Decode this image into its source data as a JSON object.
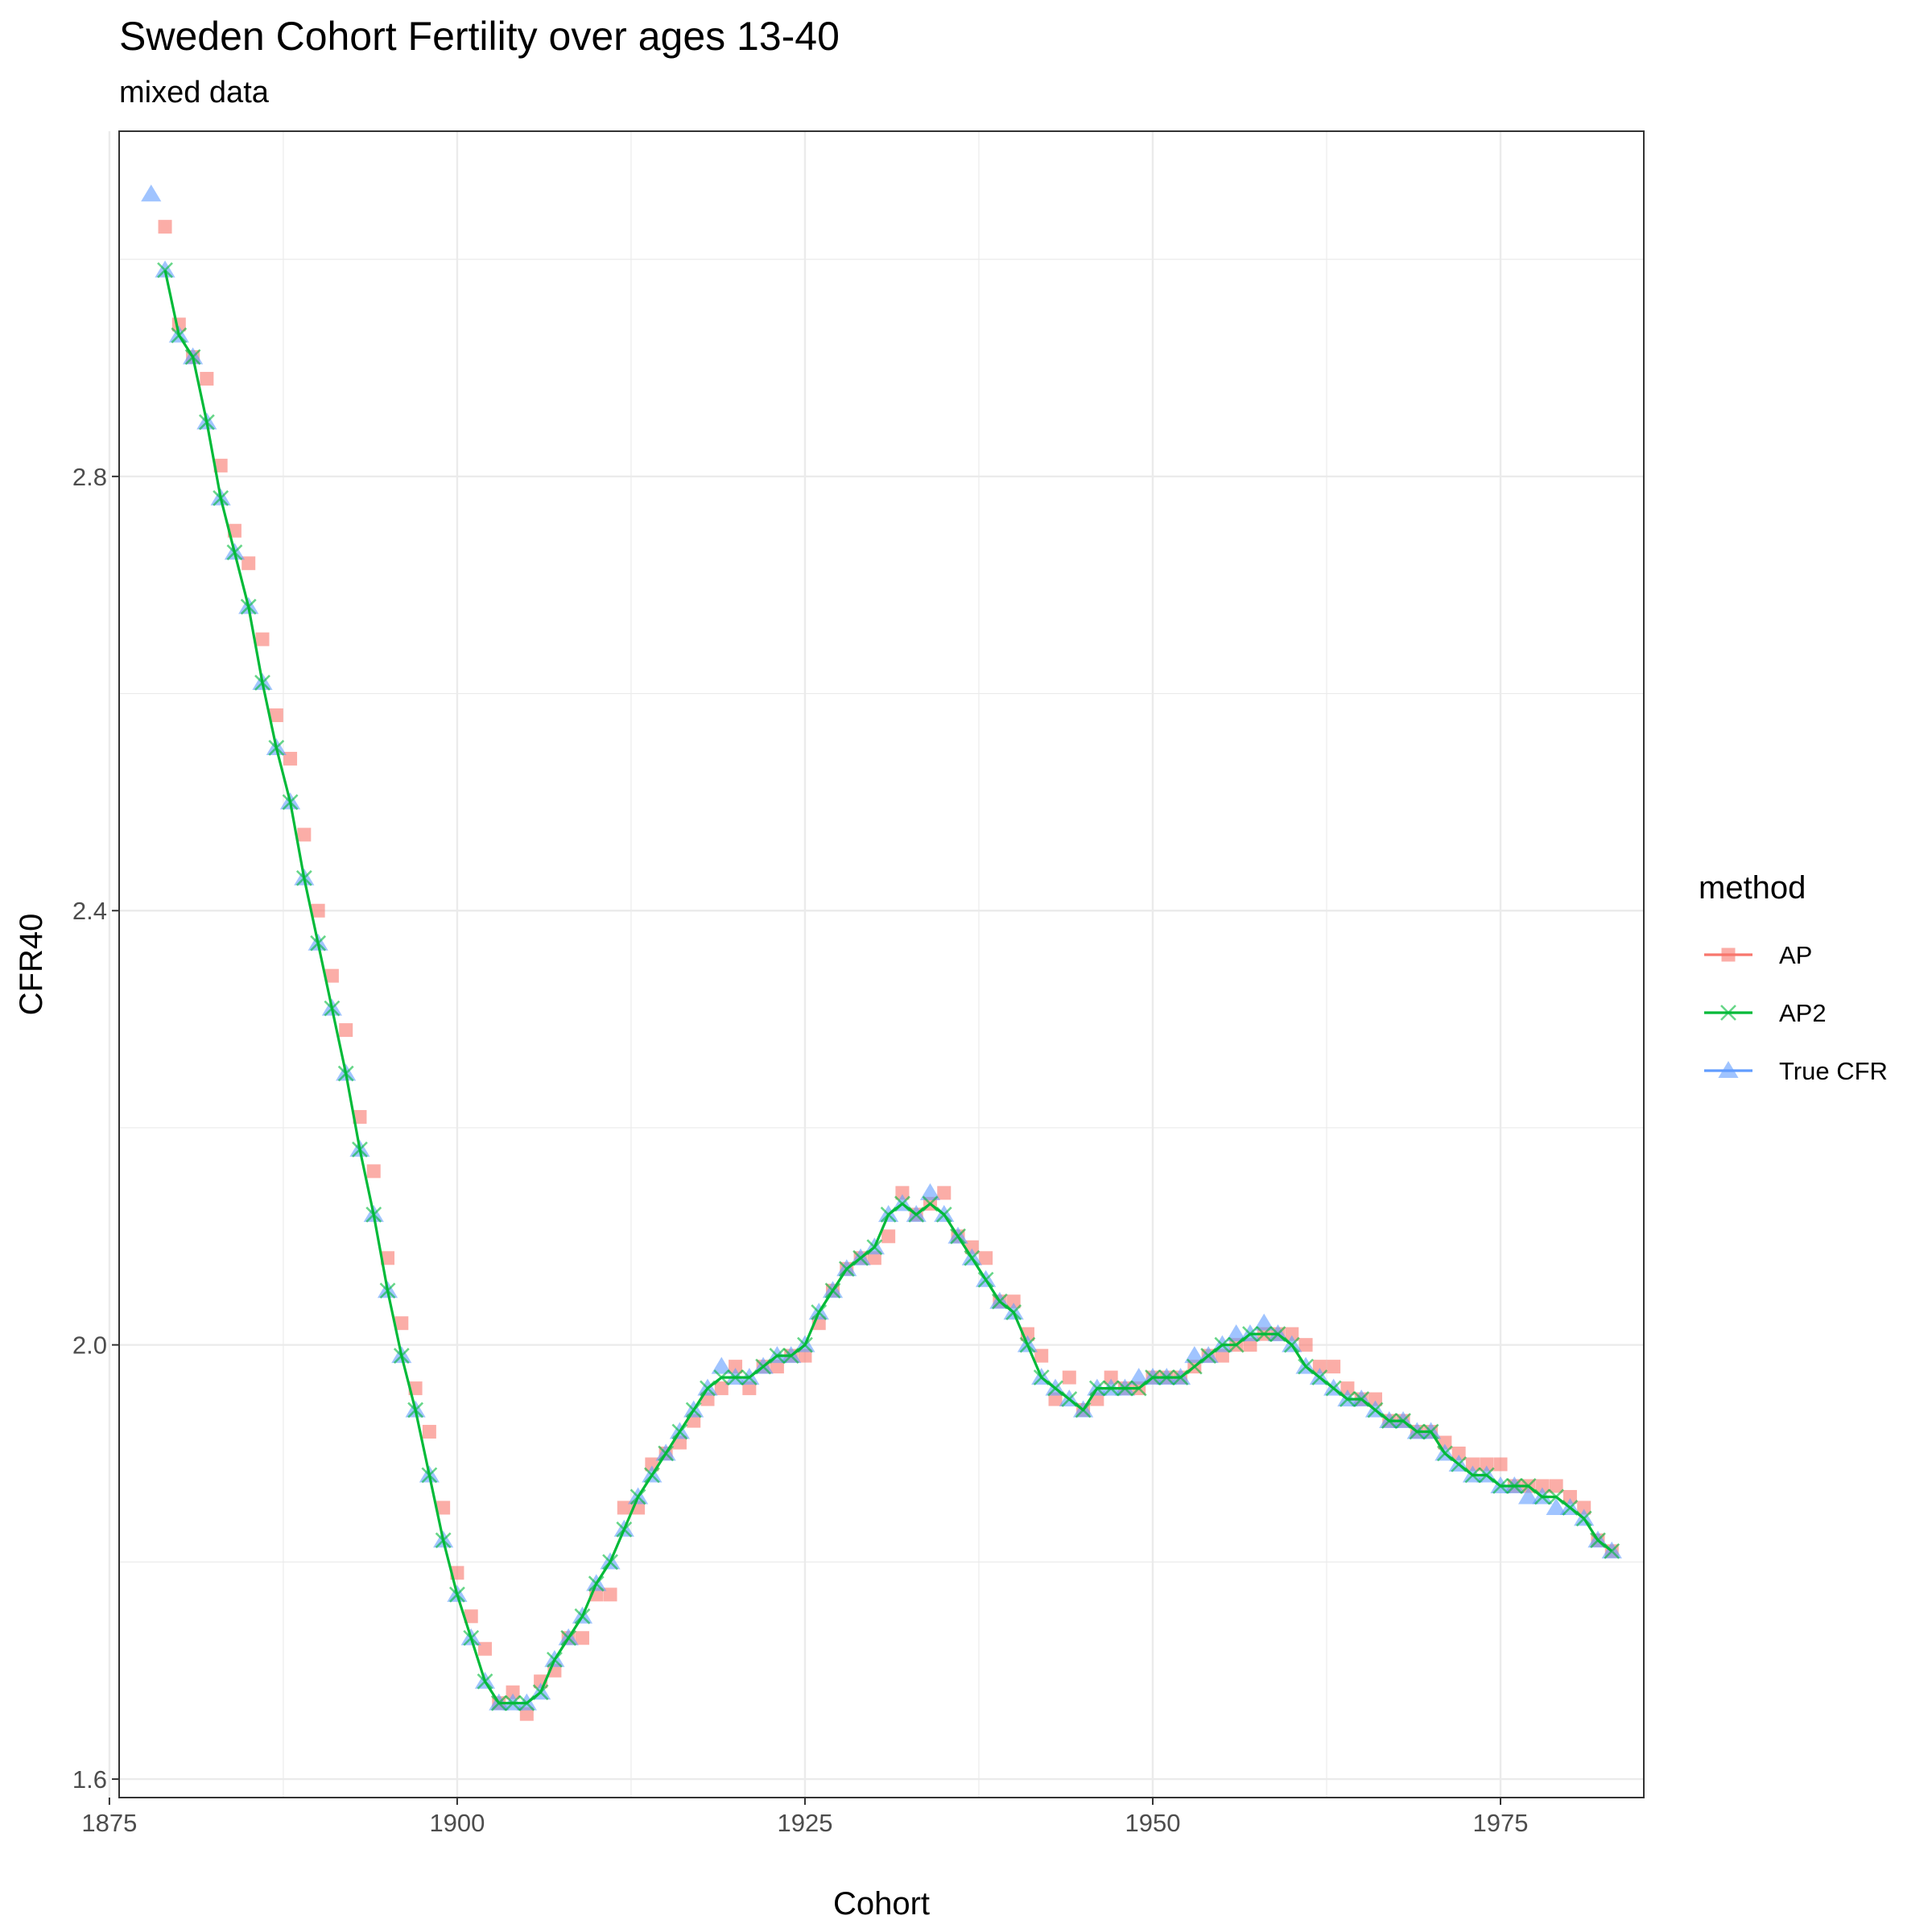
{
  "chart_data": {
    "type": "line",
    "title": "Sweden Cohort Fertility over ages 13-40",
    "subtitle": "mixed data",
    "xlabel": "Cohort",
    "ylabel": "CFR40",
    "xlim": [
      1875.7,
      1985.3
    ],
    "ylim": [
      1.583,
      3.118
    ],
    "x_ticks": [
      1875,
      1900,
      1925,
      1950,
      1975
    ],
    "x_tick_labels": [
      "1875",
      "1900",
      "1925",
      "1950",
      "1975"
    ],
    "y_ticks": [
      1.6,
      2.0,
      2.4,
      2.8
    ],
    "y_tick_labels": [
      "1.6",
      "2.0",
      "2.4",
      "2.8"
    ],
    "y_minor_ticks": [
      1.8,
      2.2,
      2.6,
      3.0
    ],
    "grid": true,
    "legend": {
      "title": "method",
      "position": "right"
    },
    "colors": {
      "AP": "#F8766D",
      "AP2": "#00BA38",
      "True CFR": "#619CFF"
    },
    "series": [
      {
        "name": "AP",
        "marker": "square",
        "x": [
          1879,
          1880,
          1881,
          1882,
          1883,
          1884,
          1885,
          1886,
          1887,
          1888,
          1889,
          1890,
          1891,
          1892,
          1893,
          1894,
          1895,
          1896,
          1897,
          1898,
          1899,
          1900,
          1901,
          1902,
          1903,
          1904,
          1905,
          1906,
          1907,
          1908,
          1909,
          1910,
          1911,
          1912,
          1913,
          1914,
          1915,
          1916,
          1917,
          1918,
          1919,
          1920,
          1921,
          1922,
          1923,
          1924,
          1925,
          1926,
          1927,
          1928,
          1929,
          1930,
          1931,
          1932,
          1933,
          1934,
          1935,
          1936,
          1937,
          1938,
          1939,
          1940,
          1941,
          1942,
          1943,
          1944,
          1945,
          1946,
          1947,
          1948,
          1949,
          1950,
          1951,
          1952,
          1953,
          1954,
          1955,
          1956,
          1957,
          1958,
          1959,
          1960,
          1961,
          1962,
          1963,
          1964,
          1965,
          1966,
          1967,
          1968,
          1969,
          1970,
          1971,
          1972,
          1973,
          1974,
          1975,
          1976,
          1977,
          1978,
          1979,
          1980,
          1981,
          1982,
          1983
        ],
        "y": [
          3.03,
          2.94,
          2.91,
          2.89,
          2.81,
          2.75,
          2.72,
          2.65,
          2.58,
          2.54,
          2.47,
          2.4,
          2.34,
          2.29,
          2.21,
          2.16,
          2.08,
          2.02,
          1.96,
          1.92,
          1.85,
          1.79,
          1.75,
          1.72,
          1.67,
          1.68,
          1.66,
          1.69,
          1.7,
          1.73,
          1.73,
          1.77,
          1.77,
          1.85,
          1.85,
          1.89,
          1.9,
          1.91,
          1.93,
          1.95,
          1.96,
          1.98,
          1.96,
          1.98,
          1.98,
          1.99,
          1.99,
          2.02,
          2.05,
          2.07,
          2.08,
          2.08,
          2.1,
          2.14,
          2.12,
          2.13,
          2.14,
          2.1,
          2.09,
          2.08,
          2.04,
          2.04,
          2.01,
          1.99,
          1.95,
          1.97,
          1.94,
          1.95,
          1.97,
          1.96,
          1.96,
          1.97,
          1.97,
          1.97,
          1.98,
          1.99,
          1.99,
          2.0,
          2.0,
          2.01,
          2.01,
          2.01,
          2.0,
          1.98,
          1.98,
          1.96,
          1.95,
          1.95,
          1.93,
          1.93,
          1.92,
          1.92,
          1.91,
          1.9,
          1.89,
          1.89,
          1.89,
          1.87,
          1.87,
          1.87,
          1.87,
          1.86,
          1.85,
          1.82,
          1.81
        ]
      },
      {
        "name": "AP2",
        "marker": "x",
        "x": [
          1879,
          1880,
          1881,
          1882,
          1883,
          1884,
          1885,
          1886,
          1887,
          1888,
          1889,
          1890,
          1891,
          1892,
          1893,
          1894,
          1895,
          1896,
          1897,
          1898,
          1899,
          1900,
          1901,
          1902,
          1903,
          1904,
          1905,
          1906,
          1907,
          1908,
          1909,
          1910,
          1911,
          1912,
          1913,
          1914,
          1915,
          1916,
          1917,
          1918,
          1919,
          1920,
          1921,
          1922,
          1923,
          1924,
          1925,
          1926,
          1927,
          1928,
          1929,
          1930,
          1931,
          1932,
          1933,
          1934,
          1935,
          1936,
          1937,
          1938,
          1939,
          1940,
          1941,
          1942,
          1943,
          1944,
          1945,
          1946,
          1947,
          1948,
          1949,
          1950,
          1951,
          1952,
          1953,
          1954,
          1955,
          1956,
          1957,
          1958,
          1959,
          1960,
          1961,
          1962,
          1963,
          1964,
          1965,
          1966,
          1967,
          1968,
          1969,
          1970,
          1971,
          1972,
          1973,
          1974,
          1975,
          1976,
          1977,
          1978,
          1979,
          1980,
          1981,
          1982,
          1983
        ],
        "y": [
          2.99,
          2.93,
          2.91,
          2.85,
          2.78,
          2.73,
          2.68,
          2.61,
          2.55,
          2.5,
          2.43,
          2.37,
          2.31,
          2.25,
          2.18,
          2.12,
          2.05,
          1.99,
          1.94,
          1.88,
          1.82,
          1.77,
          1.73,
          1.69,
          1.67,
          1.67,
          1.67,
          1.68,
          1.71,
          1.73,
          1.75,
          1.78,
          1.8,
          1.83,
          1.86,
          1.88,
          1.9,
          1.92,
          1.94,
          1.96,
          1.97,
          1.97,
          1.97,
          1.98,
          1.99,
          1.99,
          2.0,
          2.03,
          2.05,
          2.07,
          2.08,
          2.09,
          2.12,
          2.13,
          2.12,
          2.13,
          2.12,
          2.1,
          2.08,
          2.06,
          2.04,
          2.03,
          2.0,
          1.97,
          1.96,
          1.95,
          1.94,
          1.96,
          1.96,
          1.96,
          1.96,
          1.97,
          1.97,
          1.97,
          1.98,
          1.99,
          2.0,
          2.0,
          2.01,
          2.01,
          2.01,
          2.0,
          1.98,
          1.97,
          1.96,
          1.95,
          1.95,
          1.94,
          1.93,
          1.93,
          1.92,
          1.92,
          1.9,
          1.89,
          1.88,
          1.88,
          1.87,
          1.87,
          1.87,
          1.86,
          1.86,
          1.85,
          1.84,
          1.82,
          1.81
        ]
      },
      {
        "name": "True CFR",
        "marker": "triangle",
        "x": [
          1878,
          1879,
          1880,
          1881,
          1882,
          1883,
          1884,
          1885,
          1886,
          1887,
          1888,
          1889,
          1890,
          1891,
          1892,
          1893,
          1894,
          1895,
          1896,
          1897,
          1898,
          1899,
          1900,
          1901,
          1902,
          1903,
          1904,
          1905,
          1906,
          1907,
          1908,
          1909,
          1910,
          1911,
          1912,
          1913,
          1914,
          1915,
          1916,
          1917,
          1918,
          1919,
          1920,
          1921,
          1922,
          1923,
          1924,
          1925,
          1926,
          1927,
          1928,
          1929,
          1930,
          1931,
          1932,
          1933,
          1934,
          1935,
          1936,
          1937,
          1938,
          1939,
          1940,
          1941,
          1942,
          1943,
          1944,
          1945,
          1946,
          1947,
          1948,
          1949,
          1950,
          1951,
          1952,
          1953,
          1954,
          1955,
          1956,
          1957,
          1958,
          1959,
          1960,
          1961,
          1962,
          1963,
          1964,
          1965,
          1966,
          1967,
          1968,
          1969,
          1970,
          1971,
          1972,
          1973,
          1974,
          1975,
          1976,
          1977,
          1978,
          1979,
          1980,
          1981,
          1982,
          1983
        ],
        "y": [
          3.06,
          2.99,
          2.93,
          2.91,
          2.85,
          2.78,
          2.73,
          2.68,
          2.61,
          2.55,
          2.5,
          2.43,
          2.37,
          2.31,
          2.25,
          2.18,
          2.12,
          2.05,
          1.99,
          1.94,
          1.88,
          1.82,
          1.77,
          1.73,
          1.69,
          1.67,
          1.67,
          1.67,
          1.68,
          1.71,
          1.73,
          1.75,
          1.78,
          1.8,
          1.83,
          1.86,
          1.88,
          1.9,
          1.92,
          1.94,
          1.96,
          1.98,
          1.97,
          1.97,
          1.98,
          1.99,
          1.99,
          2.0,
          2.03,
          2.05,
          2.07,
          2.08,
          2.09,
          2.12,
          2.13,
          2.12,
          2.14,
          2.12,
          2.1,
          2.08,
          2.06,
          2.04,
          2.03,
          2.0,
          1.97,
          1.96,
          1.95,
          1.94,
          1.96,
          1.96,
          1.96,
          1.97,
          1.97,
          1.97,
          1.97,
          1.99,
          1.99,
          2.0,
          2.01,
          2.01,
          2.02,
          2.01,
          2.0,
          1.98,
          1.97,
          1.96,
          1.95,
          1.95,
          1.94,
          1.93,
          1.93,
          1.92,
          1.92,
          1.9,
          1.89,
          1.88,
          1.88,
          1.87,
          1.87,
          1.86,
          1.86,
          1.85,
          1.85,
          1.84,
          1.82,
          1.81
        ]
      }
    ]
  }
}
